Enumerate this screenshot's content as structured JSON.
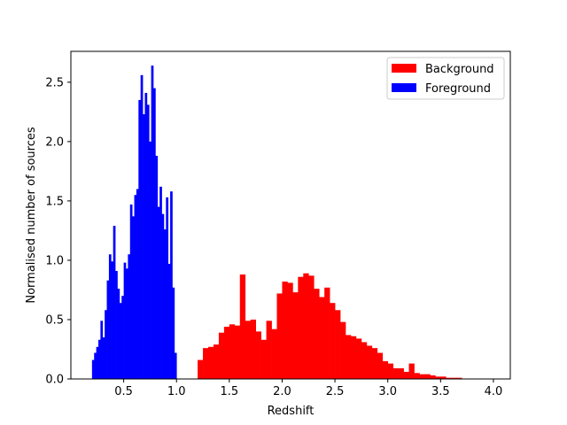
{
  "chart_data": {
    "type": "bar",
    "title": "",
    "xlabel": "Redshift",
    "ylabel": "Normalised number of sources",
    "xlim": [
      0.0,
      4.16
    ],
    "ylim": [
      0.0,
      2.76
    ],
    "xticks": [
      0.5,
      1.0,
      1.5,
      2.0,
      2.5,
      3.0,
      3.5,
      4.0
    ],
    "xtick_labels": [
      "0.5",
      "1.0",
      "1.5",
      "2.0",
      "2.5",
      "3.0",
      "3.5",
      "4.0"
    ],
    "yticks": [
      0.0,
      0.5,
      1.0,
      1.5,
      2.0,
      2.5
    ],
    "ytick_labels": [
      "0.0",
      "0.5",
      "1.0",
      "1.5",
      "2.0",
      "2.5"
    ],
    "grid": false,
    "legend": {
      "placement": "top-right"
    },
    "series": [
      {
        "name": "Background",
        "color": "#ff0000",
        "bin_edges": [
          1.2,
          1.25,
          1.3,
          1.35,
          1.4,
          1.45,
          1.5,
          1.55,
          1.6,
          1.65,
          1.7,
          1.75,
          1.8,
          1.85,
          1.9,
          1.95,
          2.0,
          2.05,
          2.1,
          2.15,
          2.2,
          2.25,
          2.3,
          2.35,
          2.4,
          2.45,
          2.5,
          2.55,
          2.6,
          2.65,
          2.7,
          2.75,
          2.8,
          2.85,
          2.9,
          2.95,
          3.0,
          3.05,
          3.1,
          3.15,
          3.2,
          3.25,
          3.3,
          3.35,
          3.4,
          3.45,
          3.5,
          3.55,
          3.6,
          3.65,
          3.7
        ],
        "values": [
          0.16,
          0.26,
          0.27,
          0.29,
          0.39,
          0.44,
          0.46,
          0.45,
          0.88,
          0.49,
          0.5,
          0.4,
          0.33,
          0.49,
          0.42,
          0.72,
          0.82,
          0.81,
          0.73,
          0.86,
          0.89,
          0.87,
          0.76,
          0.69,
          0.77,
          0.64,
          0.58,
          0.48,
          0.37,
          0.36,
          0.34,
          0.31,
          0.28,
          0.26,
          0.22,
          0.15,
          0.13,
          0.09,
          0.09,
          0.06,
          0.13,
          0.05,
          0.04,
          0.04,
          0.03,
          0.02,
          0.02,
          0.01,
          0.01,
          0.01
        ]
      },
      {
        "name": "Foreground",
        "color": "#0000ff",
        "bin_edges": [
          0.2,
          0.22,
          0.24,
          0.26,
          0.28,
          0.3,
          0.32,
          0.34,
          0.36,
          0.38,
          0.4,
          0.42,
          0.44,
          0.46,
          0.48,
          0.5,
          0.52,
          0.54,
          0.56,
          0.58,
          0.6,
          0.62,
          0.64,
          0.66,
          0.68,
          0.7,
          0.72,
          0.74,
          0.76,
          0.78,
          0.8,
          0.82,
          0.84,
          0.86,
          0.88,
          0.9,
          0.92,
          0.94,
          0.96,
          0.98,
          1.0
        ],
        "values": [
          0.16,
          0.22,
          0.27,
          0.33,
          0.49,
          0.35,
          0.58,
          0.83,
          1.05,
          0.99,
          1.29,
          0.91,
          0.76,
          0.64,
          0.7,
          0.98,
          0.93,
          1.05,
          1.47,
          1.37,
          1.55,
          1.6,
          2.35,
          2.56,
          2.23,
          2.41,
          2.31,
          2.0,
          2.64,
          2.45,
          1.88,
          1.45,
          1.62,
          1.39,
          1.26,
          1.53,
          0.97,
          1.58,
          0.77,
          0.22
        ]
      }
    ]
  }
}
